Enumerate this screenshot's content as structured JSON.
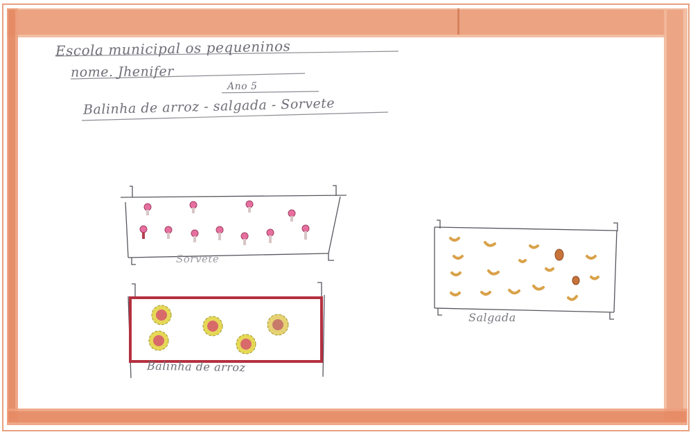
{
  "header": {
    "line1": "Escola municipal os pequeninos",
    "line2": "nome. Jhenifer",
    "line3": "Ano 5",
    "line4": "Balinha de arroz - salgada - Sorvete"
  },
  "labels": {
    "sorvete": "Sorvete",
    "salgada": "Salgada",
    "balinha": "Balinha de arroz"
  },
  "colors": {
    "border": "#e08a66",
    "pencil": "#6f6f78",
    "sorvete_pink": "#e66fa0",
    "salgada_orange": "#d9a24a",
    "balinha_frame": "#b53040",
    "balinha_petal": "#e2d13a",
    "balinha_center": "#d96a6a"
  }
}
